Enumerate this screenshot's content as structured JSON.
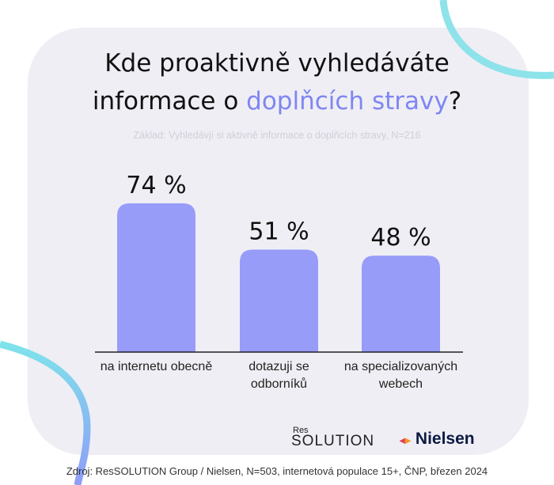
{
  "title_line1": "Kde proaktivně vyhledáváte",
  "title_line2_pre": "informace o ",
  "title_line2_accent": "doplňcích stravy",
  "title_line2_post": "?",
  "subtitle": "Základ: Vyhledávjí si aktivně informace o doplňcích stravy, N=216",
  "source": "Zdroj: ResSOLUTION Group / Nielsen, N=503, internetová populace 15+, ČNP, březen 2024",
  "logos": {
    "res_small": "Res",
    "res_main": "SOLUTION",
    "nielsen": "Nielsen"
  },
  "colors": {
    "bar": "#979cf9",
    "accent": "#7f86f2",
    "card": "#efeef4"
  },
  "chart_data": {
    "type": "bar",
    "categories": [
      "na internetu obecně",
      "dotazuji se odborníků",
      "na specializovaných webech"
    ],
    "values": [
      74,
      51,
      48
    ],
    "value_labels": [
      "74 %",
      "51 %",
      "48 %"
    ],
    "unit": "%",
    "ylim": [
      0,
      100
    ],
    "grid": false
  }
}
